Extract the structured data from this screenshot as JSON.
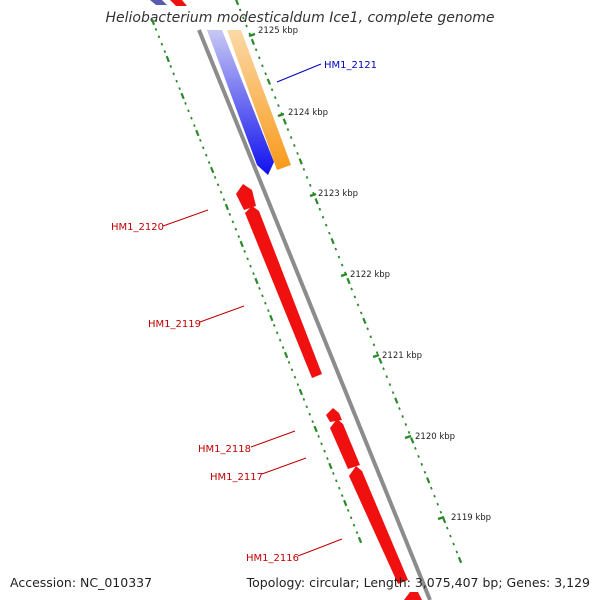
{
  "title": "Heliobacterium modesticaldum Ice1, complete genome",
  "footer": {
    "accession": "Accession: NC_010337",
    "summary": "Topology: circular; Length: 3,075,407 bp; Genes: 3,129"
  },
  "colors": {
    "forward_gene": "#1010f0",
    "reverse_gene": "#f01010",
    "cds_feature": "#f89a1c",
    "backbone": "#8c8c8c",
    "tick": "#2a8a2a",
    "gene_label_blue": "#0000c0",
    "gene_label_red": "#c00000"
  },
  "kbp_ticks": [
    "2125 kbp",
    "2124 kbp",
    "2123 kbp",
    "2122 kbp",
    "2121 kbp",
    "2120 kbp",
    "2119 kbp"
  ],
  "gene_labels": [
    {
      "text": "HM1_2121",
      "color": "blue"
    },
    {
      "text": "HM1_2120",
      "color": "red"
    },
    {
      "text": "HM1_2119",
      "color": "red"
    },
    {
      "text": "HM1_2118",
      "color": "red"
    },
    {
      "text": "HM1_2117",
      "color": "red"
    },
    {
      "text": "HM1_2116",
      "color": "red"
    }
  ]
}
